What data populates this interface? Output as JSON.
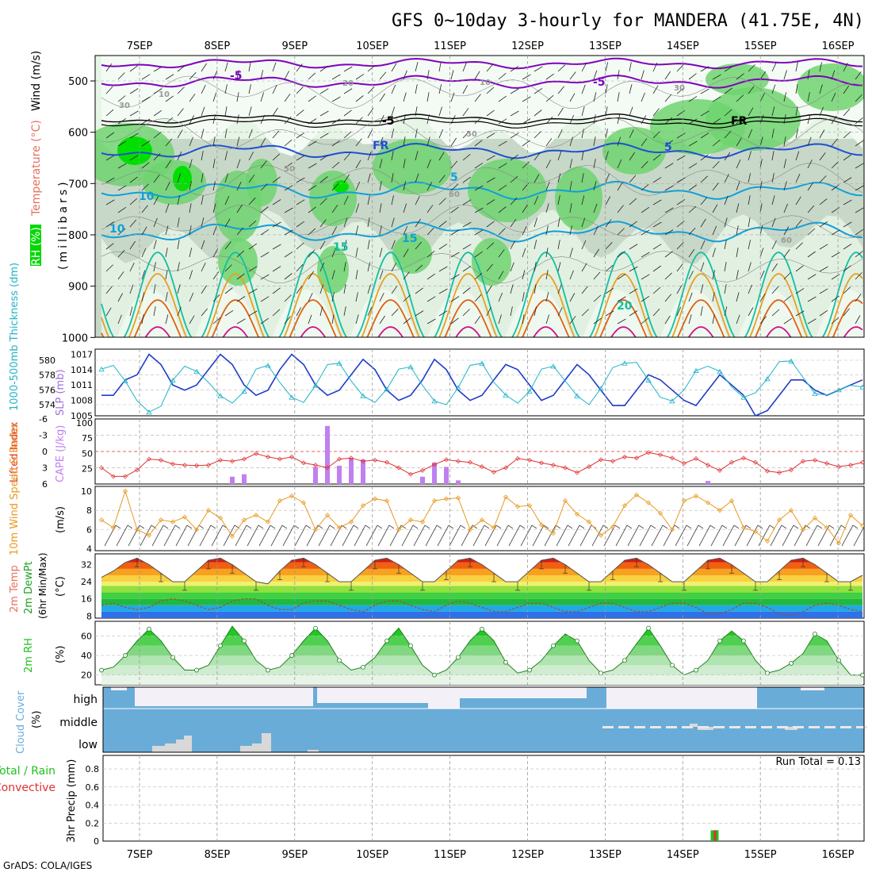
{
  "title": "GFS 0~10day 3-hourly for MANDERA (41.75E, 4N)",
  "footer": "GrADS: COLA/IGES",
  "run_total": "Run Total = 0.13",
  "date_labels": [
    "7SEP",
    "8SEP",
    "9SEP",
    "10SEP",
    "11SEP",
    "12SEP",
    "13SEP",
    "14SEP",
    "15SEP",
    "16SEP"
  ],
  "colors": {
    "rh_light": "#e6f5e6",
    "rh_mid": "#c8d8c8",
    "rh_dark": "#aabfaa",
    "rh_green": "#6ed46e",
    "rh_bright": "#00e000",
    "temp_purple": "#8000c0",
    "temp_blue": "#1e50d2",
    "temp_cyan": "#10a0d8",
    "temp_teal": "#10c0a0",
    "temp_orange": "#e8a020",
    "temp_deep_orange": "#e06010",
    "temp_magenta": "#d0108a",
    "slp": "#1e3cc8",
    "thickness": "#20b4c8",
    "lifted": "#e03030",
    "cape": "#c080f0",
    "wind": "#e89a20",
    "cloud": "#6aacd8",
    "rh2m": "#20c020",
    "precip_total": "#20c020",
    "precip_conv": "#e03030"
  },
  "panels": {
    "upper": {
      "y_label_rh": "RH (%)",
      "y_label_temp": "Temperature (°C)",
      "y_label_wind": "Wind (m/s)",
      "y_label_units": "(millibars)",
      "ticks": [
        "500",
        "600",
        "700",
        "800",
        "900",
        "1000"
      ],
      "contour_labels": [
        "-5",
        "-5",
        "-5",
        "FR",
        "FR",
        "5",
        "5",
        "10",
        "10",
        "15",
        "15",
        "20",
        "20",
        "10",
        "10",
        "30",
        "30",
        "50",
        "50",
        "60",
        "60"
      ]
    },
    "slp": {
      "y_label_thk": "1000-500mb Thickness (dm)",
      "y_label_slp": "SLP (mb)",
      "ticks_left": [
        "580",
        "578",
        "576",
        "574"
      ],
      "ticks_right": [
        "1017",
        "1014",
        "1011",
        "1008",
        "1005"
      ]
    },
    "cape": {
      "y_label_li": "Lifted Index",
      "y_label_cape": "CAPE (J/kg)",
      "ticks_left": [
        "-6",
        "-3",
        "0",
        "3",
        "6"
      ],
      "ticks_right": [
        "100",
        "75",
        "50",
        "25"
      ]
    },
    "wind": {
      "y_label": "10m Wind Speed & Barbs",
      "y_units": "(m/s)",
      "ticks": [
        "10",
        "8",
        "6",
        "4"
      ]
    },
    "temp": {
      "y_label1": "2m Temp",
      "y_label2": "2m DewPt",
      "y_label3": "(6hr Min/Max)",
      "y_units": "(°C)",
      "ticks": [
        "32",
        "24",
        "16",
        "8"
      ]
    },
    "rh": {
      "y_label": "2m RH",
      "y_units": "(%)",
      "ticks": [
        "60",
        "40",
        "20"
      ]
    },
    "cloud": {
      "y_label": "Cloud Cover",
      "y_units": "(%)",
      "levels": [
        "high",
        "middle",
        "low"
      ]
    },
    "precip": {
      "y_label1": "Total / Rain",
      "y_label2": "Convective",
      "y_label3": "3hr Precip (mm)",
      "ticks": [
        "0.8",
        "0.6",
        "0.4",
        "0.2",
        "0"
      ]
    }
  },
  "chart_data": [
    {
      "type": "line",
      "name": "slp_thickness",
      "title": "",
      "x": "3-hourly steps, 6SEP 21Z to 16SEP 06Z",
      "series": [
        {
          "name": "SLP (mb)",
          "values": [
            1009,
            1009,
            1012,
            1013,
            1017,
            1015,
            1011,
            1010,
            1011,
            1014,
            1017,
            1015,
            1011,
            1009,
            1010,
            1014,
            1017,
            1015,
            1011,
            1009,
            1010,
            1013,
            1016,
            1014,
            1010,
            1008,
            1009,
            1012,
            1016,
            1014,
            1010,
            1008,
            1009,
            1012,
            1015,
            1014,
            1011,
            1008,
            1009,
            1012,
            1015,
            1013,
            1010,
            1007,
            1007,
            1010,
            1013,
            1012,
            1010,
            1008,
            1007,
            1010,
            1013,
            1011,
            1009,
            1005,
            1006,
            1009,
            1012,
            1012,
            1010,
            1009,
            1010,
            1011,
            1012
          ]
        },
        {
          "name": "1000-500mb Thickness (dm)",
          "values": [
            578.8,
            579.3,
            577.2,
            574.5,
            573.0,
            573.8,
            577.3,
            579.2,
            578.5,
            577.0,
            575.2,
            574.2,
            575.8,
            578.8,
            579.3,
            577.0,
            575.0,
            574.3,
            576.6,
            579.4,
            579.6,
            577.2,
            575.2,
            574.3,
            576.1,
            578.8,
            579.1,
            576.6,
            574.5,
            574.0,
            576.3,
            579.3,
            579.6,
            577.0,
            575.3,
            574.2,
            575.8,
            578.8,
            579.2,
            577.2,
            575.2,
            574.0,
            576.2,
            579.0,
            579.6,
            579.7,
            577.3,
            575.0,
            574.5,
            576.0,
            578.6,
            579.2,
            578.5,
            576.4,
            575.0,
            575.6,
            577.5,
            579.8,
            579.9,
            577.7,
            575.5,
            575.3,
            576.0,
            576.6,
            576.4
          ]
        }
      ]
    },
    {
      "type": "bar",
      "name": "cape_lifted_index",
      "title": "",
      "series": [
        {
          "name": "CAPE (J/kg)",
          "bars": [
            [
              11,
              12
            ],
            [
              12,
              16
            ],
            [
              18,
              28
            ],
            [
              19,
              95
            ],
            [
              20,
              30
            ],
            [
              21,
              42
            ],
            [
              22,
              40
            ],
            [
              27,
              12
            ],
            [
              28,
              35
            ],
            [
              29,
              28
            ],
            [
              30,
              6
            ],
            [
              51,
              5
            ]
          ]
        },
        {
          "name": "Lifted Index",
          "values": [
            3,
            4.6,
            4.6,
            3.4,
            1.4,
            1.6,
            2.3,
            2.5,
            2.6,
            2.5,
            1.6,
            1.8,
            1.4,
            0.4,
            1,
            1.4,
            1,
            2.1,
            2.5,
            3,
            1.4,
            1.2,
            1.8,
            1.6,
            2,
            3,
            4.2,
            3.5,
            2.4,
            1.5,
            1.8,
            2,
            2.8,
            3.8,
            3,
            1.3,
            1.6,
            2.1,
            2.5,
            3,
            3.9,
            2.8,
            1.5,
            1.8,
            1,
            1.2,
            0.2,
            0.6,
            1.2,
            2.2,
            1.3,
            2.5,
            3.5,
            2,
            1.2,
            2,
            3.6,
            3.9,
            3.4,
            1.8,
            1.6,
            2.2,
            2.8,
            2.5,
            2
          ]
        }
      ],
      "ylim_li": [
        6,
        -6
      ],
      "ylim_cape": [
        0,
        100
      ]
    },
    {
      "type": "line",
      "name": "wind10m",
      "title": "",
      "series": [
        {
          "name": "10m Wind Speed (m/s)",
          "values": [
            7,
            6.2,
            10,
            6,
            5.4,
            7,
            6.8,
            7.3,
            6,
            8,
            7.2,
            5.3,
            7,
            7.5,
            6.8,
            9,
            9.5,
            8.8,
            6,
            7.5,
            6.2,
            6.8,
            8.5,
            9.2,
            9,
            6,
            7,
            6.8,
            9,
            9.2,
            9.3,
            6,
            7,
            6.2,
            9.4,
            8.4,
            8.5,
            6.5,
            5.6,
            9,
            7.6,
            6.8,
            5.4,
            6.3,
            8.5,
            9.6,
            8.8,
            7.7,
            6,
            9,
            9.5,
            8.8,
            8,
            9,
            6.2,
            5.8,
            4.8,
            7,
            8,
            6,
            7.2,
            6.2,
            4.6,
            7.5,
            6.4
          ]
        }
      ],
      "ylim": [
        4,
        10
      ]
    },
    {
      "type": "area",
      "name": "temp2m",
      "title": "",
      "series": [
        {
          "name": "2m Temp (°C)",
          "values": [
            26,
            29,
            33,
            35,
            32,
            28,
            24,
            24,
            29,
            34,
            35,
            32,
            28,
            24,
            23,
            29,
            34,
            35,
            32,
            28,
            24,
            24,
            29,
            34,
            35,
            32,
            28,
            24,
            24,
            29,
            34,
            35,
            32,
            28,
            24,
            24,
            29,
            34,
            35,
            32,
            28,
            24,
            24,
            29,
            34,
            35,
            32,
            28,
            24,
            24,
            29,
            34,
            35,
            32,
            28,
            24,
            24,
            29,
            34,
            35,
            32,
            28,
            24,
            24,
            27
          ]
        },
        {
          "name": "2m DewPt (°C)",
          "values": [
            13,
            14,
            12,
            11,
            12,
            15,
            16,
            15,
            13,
            11,
            12,
            15,
            16,
            16,
            13,
            11,
            11,
            14,
            15,
            15,
            13,
            11,
            10,
            13,
            15,
            15,
            13,
            11,
            10,
            13,
            15,
            14,
            12,
            10,
            10,
            12,
            14,
            14,
            12,
            10,
            10,
            12,
            14,
            14,
            12,
            10,
            10,
            12,
            14,
            14,
            12,
            9,
            9,
            11,
            14,
            14,
            12,
            9,
            8,
            10,
            13,
            14,
            13,
            11,
            10
          ]
        }
      ],
      "ylim": [
        7,
        37
      ]
    },
    {
      "type": "area",
      "name": "rh2m",
      "title": "",
      "series": [
        {
          "name": "2m RH (%)",
          "values": [
            25,
            28,
            40,
            55,
            67,
            55,
            38,
            25,
            25,
            30,
            50,
            70,
            55,
            35,
            25,
            28,
            40,
            55,
            68,
            55,
            35,
            25,
            28,
            38,
            55,
            68,
            50,
            30,
            20,
            25,
            38,
            55,
            67,
            55,
            33,
            22,
            25,
            35,
            50,
            62,
            55,
            35,
            22,
            25,
            35,
            52,
            68,
            50,
            30,
            20,
            25,
            35,
            55,
            65,
            55,
            35,
            22,
            25,
            32,
            42,
            62,
            55,
            35,
            20,
            20
          ]
        }
      ],
      "ylim": [
        10,
        75
      ]
    },
    {
      "type": "bar",
      "name": "precip3hr",
      "title": "",
      "series": [
        {
          "name": "3hr Precip (mm)",
          "bars": [
            [
              51.5,
              0.12
            ]
          ]
        }
      ],
      "ylim": [
        0,
        0.95
      ]
    }
  ]
}
